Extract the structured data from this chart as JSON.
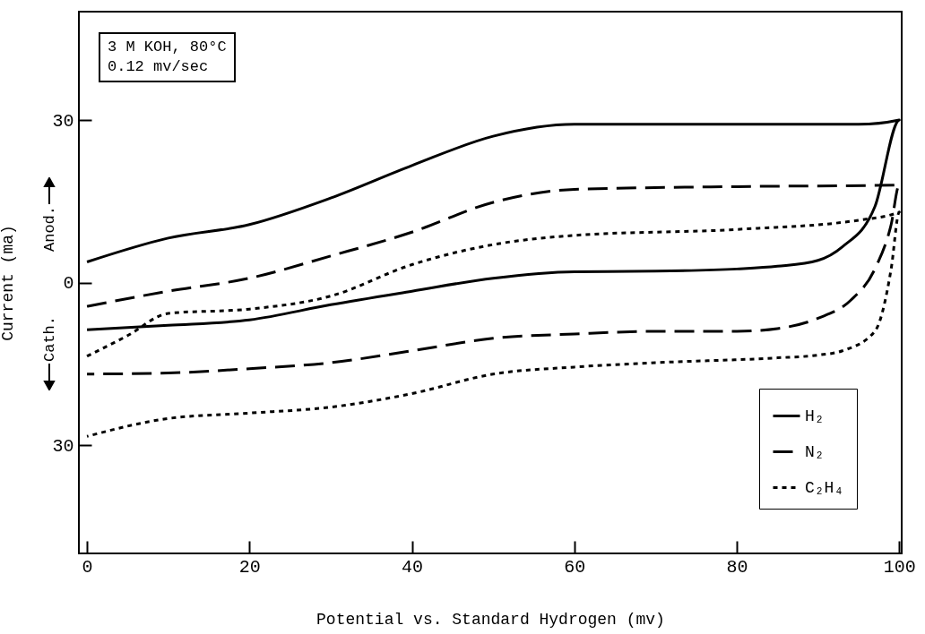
{
  "chart_data": {
    "type": "line",
    "xlabel": "Potential vs. Standard Hydrogen (mv)",
    "ylabel": "Current (ma)",
    "annotations": [
      "3 M KOH, 80°C",
      "0.12 mv/sec",
      "Anod.",
      "Cath."
    ],
    "xlim": [
      -1,
      100.3
    ],
    "xticks": [
      0,
      20,
      40,
      60,
      80,
      100
    ],
    "ylim": [
      -50,
      50
    ],
    "yticks": [
      {
        "value": -30,
        "label": "30"
      },
      0,
      30
    ],
    "grid": false,
    "legend": "bottom right",
    "marker": "none",
    "series": [
      {
        "name": "H₂",
        "color": "#000000",
        "line_style": "solid",
        "x": [
          0,
          10,
          20,
          30,
          40,
          50,
          60,
          80,
          95,
          100,
          97,
          93,
          90,
          85,
          80,
          70,
          60,
          50,
          40,
          30,
          20,
          10,
          0
        ],
        "values": [
          3.8,
          8.2,
          10.7,
          15.6,
          21.6,
          27,
          29.2,
          29.2,
          29.2,
          30,
          14,
          6.6,
          4.1,
          3,
          2.5,
          2.1,
          2,
          0.8,
          -1.6,
          -4.1,
          -6.9,
          -7.9,
          -8.7
        ]
      },
      {
        "name": "N₂",
        "color": "#000000",
        "line_style": "dashed",
        "x": [
          0,
          10,
          20,
          30,
          40,
          50,
          60,
          80,
          100,
          99,
          97,
          94,
          90,
          85,
          80,
          70,
          60,
          50,
          40,
          30,
          20,
          10,
          0
        ],
        "values": [
          -4.4,
          -1.6,
          0.8,
          4.9,
          9.3,
          14.8,
          17.2,
          17.7,
          18,
          10.7,
          2.5,
          -3.3,
          -6.6,
          -8.5,
          -9,
          -9,
          -9.5,
          -10.3,
          -12.6,
          -14.8,
          -15.9,
          -16.7,
          -16.9
        ]
      },
      {
        "name": "C₂H₄",
        "color": "#000000",
        "line_style": "dotted",
        "x": [
          0,
          5,
          10,
          20,
          30,
          40,
          50,
          60,
          80,
          95,
          100,
          99,
          97,
          93,
          90,
          85,
          70,
          60,
          50,
          40,
          30,
          20,
          10,
          0
        ],
        "values": [
          -13.6,
          -9.8,
          -5.7,
          -4.9,
          -2.5,
          3.3,
          7,
          8.7,
          9.8,
          11.5,
          13,
          2.5,
          -9,
          -12.6,
          -13.4,
          -13.9,
          -14.8,
          -15.6,
          -16.9,
          -20.5,
          -23,
          -24.1,
          -25.1,
          -28.4
        ]
      }
    ]
  }
}
